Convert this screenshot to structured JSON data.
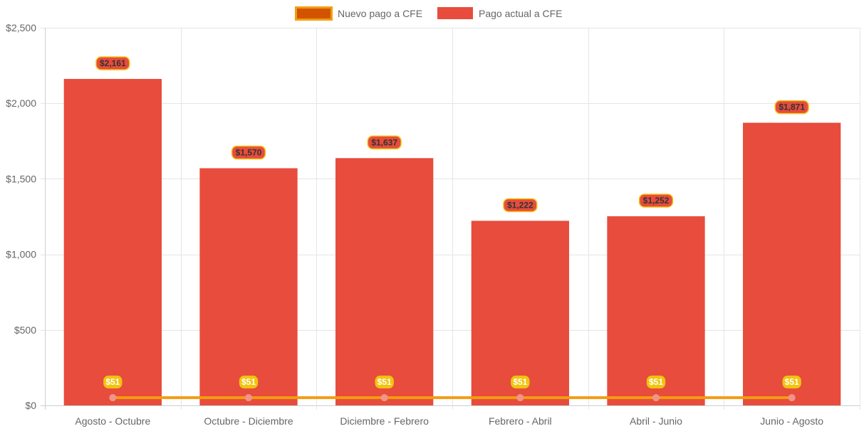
{
  "chart_data": {
    "type": "bar",
    "title": "",
    "xlabel": "",
    "ylabel": "",
    "categories": [
      "Agosto - Octubre",
      "Octubre - Diciembre",
      "Diciembre - Febrero",
      "Febrero - Abril",
      "Abril - Junio",
      "Junio - Agosto"
    ],
    "ylim": [
      0,
      2500
    ],
    "yticks": [
      0,
      500,
      1000,
      1500,
      2000,
      2500
    ],
    "ytick_labels": [
      "$0",
      "$500",
      "$1,000",
      "$1,500",
      "$2,000",
      "$2,500"
    ],
    "grid": true,
    "legend_position": "top",
    "series": [
      {
        "name": "Nuevo pago a CFE",
        "type": "line",
        "values": [
          51,
          51,
          51,
          51,
          51,
          51
        ],
        "labels": [
          "$51",
          "$51",
          "$51",
          "$51",
          "$51",
          "$51"
        ],
        "color": "#F39C12",
        "legend_fill": "#D35400",
        "label_bg": "#F1C40F",
        "label_text_color": "#ffffff",
        "point_color": "#F1948A"
      },
      {
        "name": "Pago actual a CFE",
        "type": "bar",
        "values": [
          2161,
          1570,
          1637,
          1222,
          1252,
          1871
        ],
        "labels": [
          "$2,161",
          "$1,570",
          "$1,637",
          "$1,222",
          "$1,252",
          "$1,871"
        ],
        "color": "#E74C3C",
        "label_bg": "#E74C3C",
        "label_border": "#F1C40F",
        "label_text_color": "#333333"
      }
    ]
  }
}
